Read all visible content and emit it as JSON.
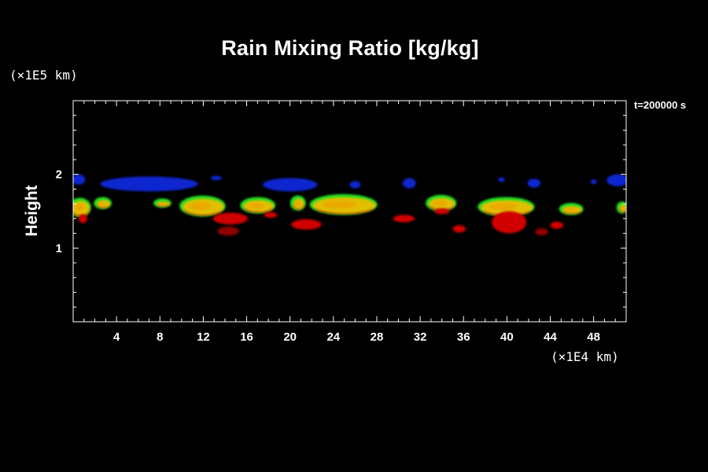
{
  "chart_data": {
    "type": "heatmap",
    "title": "Rain Mixing Ratio [kg/kg]",
    "ylabel": "Height",
    "xunit": "(×1E4 km)",
    "yunit": "(×1E5 km)",
    "timestamp": "t=200000 s",
    "xlim": [
      0,
      51
    ],
    "ylim": [
      0,
      3
    ],
    "xticks": [
      4,
      8,
      12,
      16,
      20,
      24,
      28,
      32,
      36,
      40,
      44,
      48
    ],
    "yticks": [
      1,
      2
    ],
    "colors": {
      "blue": "#1028d0",
      "green": "#20e020",
      "yellow": "#e0c000",
      "orange": "#f0a000",
      "red": "#d00000",
      "darkred": "#900000"
    },
    "blobs": [
      {
        "band": "blue",
        "x": 0.5,
        "y": 1.93,
        "rx": 0.6,
        "ry": 0.07
      },
      {
        "band": "blue",
        "x": 7.0,
        "y": 1.87,
        "rx": 4.5,
        "ry": 0.1
      },
      {
        "band": "blue",
        "x": 13.2,
        "y": 1.95,
        "rx": 0.5,
        "ry": 0.03
      },
      {
        "band": "blue",
        "x": 20.0,
        "y": 1.86,
        "rx": 2.5,
        "ry": 0.09
      },
      {
        "band": "blue",
        "x": 26.0,
        "y": 1.86,
        "rx": 0.5,
        "ry": 0.05
      },
      {
        "band": "blue",
        "x": 31.0,
        "y": 1.88,
        "rx": 0.6,
        "ry": 0.07
      },
      {
        "band": "blue",
        "x": 39.5,
        "y": 1.93,
        "rx": 0.3,
        "ry": 0.03
      },
      {
        "band": "blue",
        "x": 42.5,
        "y": 1.88,
        "rx": 0.6,
        "ry": 0.06
      },
      {
        "band": "blue",
        "x": 48.0,
        "y": 1.9,
        "rx": 0.3,
        "ry": 0.03
      },
      {
        "band": "blue",
        "x": 50.2,
        "y": 1.92,
        "rx": 1.0,
        "ry": 0.08
      },
      {
        "band": "yellow",
        "x": 0.7,
        "y": 1.54,
        "rx": 0.8,
        "ry": 0.1
      },
      {
        "band": "yellow",
        "x": 2.8,
        "y": 1.6,
        "rx": 0.6,
        "ry": 0.05
      },
      {
        "band": "yellow",
        "x": 8.3,
        "y": 1.6,
        "rx": 0.6,
        "ry": 0.03
      },
      {
        "band": "yellow",
        "x": 12.0,
        "y": 1.56,
        "rx": 1.9,
        "ry": 0.11
      },
      {
        "band": "yellow",
        "x": 17.1,
        "y": 1.57,
        "rx": 1.4,
        "ry": 0.08
      },
      {
        "band": "yellow",
        "x": 20.8,
        "y": 1.6,
        "rx": 0.5,
        "ry": 0.07
      },
      {
        "band": "yellow",
        "x": 25.0,
        "y": 1.58,
        "rx": 2.9,
        "ry": 0.11
      },
      {
        "band": "yellow",
        "x": 34.0,
        "y": 1.6,
        "rx": 1.2,
        "ry": 0.08
      },
      {
        "band": "yellow",
        "x": 40.0,
        "y": 1.55,
        "rx": 2.4,
        "ry": 0.1
      },
      {
        "band": "yellow",
        "x": 46.0,
        "y": 1.52,
        "rx": 0.9,
        "ry": 0.05
      },
      {
        "band": "yellow",
        "x": 50.7,
        "y": 1.54,
        "rx": 0.3,
        "ry": 0.05
      },
      {
        "band": "red",
        "x": 0.9,
        "y": 1.4,
        "rx": 0.4,
        "ry": 0.06
      },
      {
        "band": "red",
        "x": 14.5,
        "y": 1.4,
        "rx": 1.6,
        "ry": 0.08
      },
      {
        "band": "darkred",
        "x": 14.3,
        "y": 1.23,
        "rx": 1.0,
        "ry": 0.06
      },
      {
        "band": "red",
        "x": 18.2,
        "y": 1.45,
        "rx": 0.6,
        "ry": 0.04
      },
      {
        "band": "red",
        "x": 21.5,
        "y": 1.32,
        "rx": 1.4,
        "ry": 0.07
      },
      {
        "band": "red",
        "x": 30.5,
        "y": 1.4,
        "rx": 1.0,
        "ry": 0.05
      },
      {
        "band": "red",
        "x": 34.0,
        "y": 1.5,
        "rx": 0.7,
        "ry": 0.04
      },
      {
        "band": "red",
        "x": 35.6,
        "y": 1.26,
        "rx": 0.6,
        "ry": 0.05
      },
      {
        "band": "red",
        "x": 40.2,
        "y": 1.35,
        "rx": 1.6,
        "ry": 0.15
      },
      {
        "band": "darkred",
        "x": 43.2,
        "y": 1.22,
        "rx": 0.6,
        "ry": 0.05
      },
      {
        "band": "red",
        "x": 44.6,
        "y": 1.31,
        "rx": 0.6,
        "ry": 0.05
      }
    ]
  }
}
